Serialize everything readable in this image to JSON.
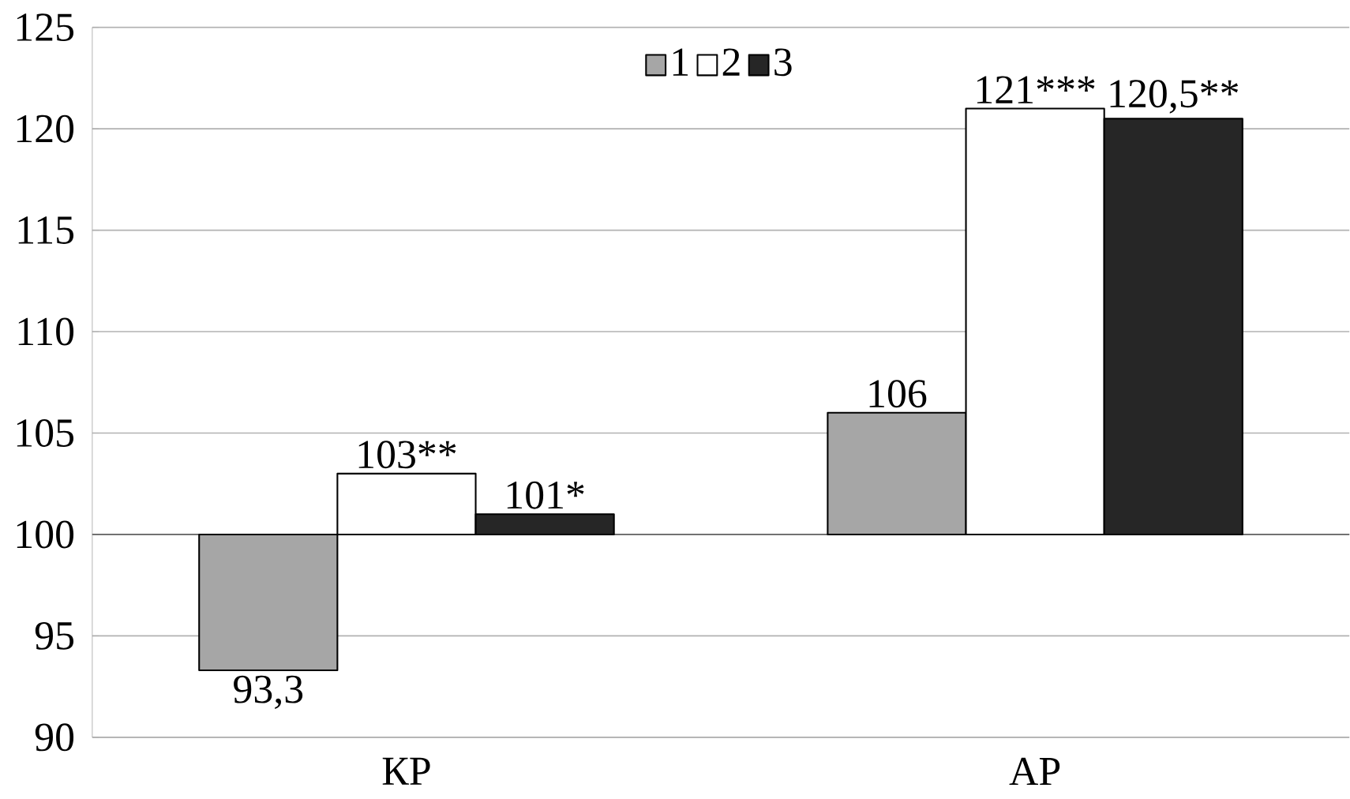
{
  "chart_data": {
    "type": "bar",
    "categories": [
      "КР",
      "АР"
    ],
    "ylim": [
      90,
      125
    ],
    "yticks": [
      90,
      95,
      100,
      105,
      110,
      115,
      120,
      125
    ],
    "grid": "y",
    "legend": "top",
    "ref_lines": [
      {
        "axis": "y",
        "value": 100
      }
    ],
    "series": [
      {
        "name": "1",
        "color": "#a6a6a6",
        "base": [
          100,
          100
        ],
        "values": [
          -6.7,
          6
        ],
        "value_labels": [
          "93,3",
          "106"
        ]
      },
      {
        "name": "2",
        "color": "#ffffff",
        "base": [
          100,
          100
        ],
        "values": [
          3,
          21
        ],
        "value_labels": [
          "103**",
          "121***"
        ]
      },
      {
        "name": "3",
        "color": "#262626",
        "base": [
          100,
          100
        ],
        "values": [
          1,
          20.5
        ],
        "value_labels": [
          "101*",
          "120,5**"
        ]
      }
    ]
  }
}
